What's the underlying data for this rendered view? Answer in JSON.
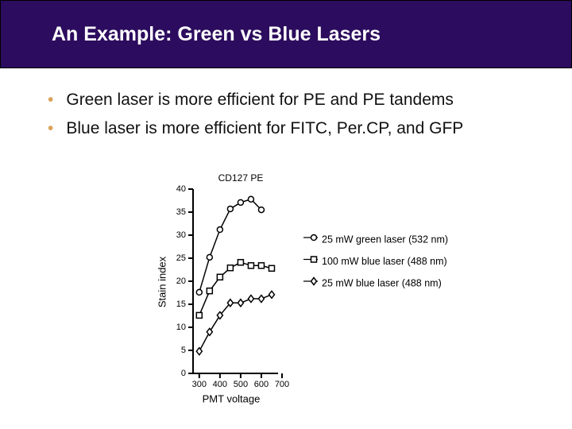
{
  "header": {
    "title": "An Example: Green vs Blue Lasers"
  },
  "bullets": [
    "Green laser is more efficient for PE and PE tandems",
    "Blue laser is more efficient for FITC, Per.CP, and GFP"
  ],
  "chart_data": {
    "type": "line",
    "title": "CD127 PE",
    "x_label": "PMT voltage",
    "y_label": "Stain index",
    "x": [
      300,
      350,
      400,
      450,
      500,
      550,
      600,
      650
    ],
    "series": [
      {
        "name": "25 mW green laser (532 nm)",
        "color": "#000000",
        "marker": "circle",
        "values": [
          17.6,
          25.2,
          31.2,
          35.7,
          37.1,
          37.8,
          35.5,
          null
        ]
      },
      {
        "name": "100 mW blue laser (488 nm)",
        "color": "#000000",
        "marker": "square",
        "values": [
          12.6,
          17.9,
          20.9,
          22.9,
          24.1,
          23.4,
          23.4,
          22.8
        ]
      },
      {
        "name": "25 mW blue laser (488 nm)",
        "color": "#000000",
        "marker": "diamond",
        "values": [
          4.8,
          9.0,
          12.6,
          15.3,
          15.3,
          16.2,
          16.2,
          17.1
        ]
      }
    ],
    "xlim": [
      270,
      700
    ],
    "ylim": [
      0,
      40
    ],
    "xticks": [
      300,
      400,
      500,
      600,
      700
    ],
    "yticks": [
      0,
      5,
      10,
      15,
      20,
      25,
      30,
      35,
      40
    ]
  }
}
